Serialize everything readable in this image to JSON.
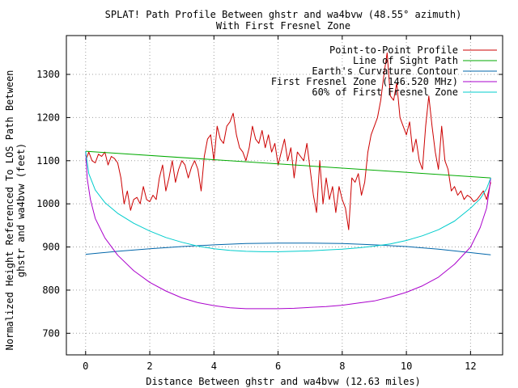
{
  "chart_data": {
    "type": "line",
    "title_line1": "SPLAT! Path Profile Between ghstr and wa4bvw (48.55° azimuth)",
    "title_line2": "With First Fresnel Zone",
    "xlabel": "Distance Between ghstr and wa4bvw (12.63 miles)",
    "ylabel_line1": "Normalized Height Referenced To LOS Path Between",
    "ylabel_line2": "ghstr and wa4bvw (feet)",
    "xlim": [
      -0.6,
      13.0
    ],
    "ylim": [
      650,
      1390
    ],
    "x_ticks": [
      0,
      2,
      4,
      6,
      8,
      10,
      12
    ],
    "y_ticks": [
      700,
      800,
      900,
      1000,
      1100,
      1200,
      1300
    ],
    "grid": true,
    "legend_position": "top-right",
    "series": [
      {
        "name": "Point-to-Point Profile",
        "color": "#cc0000",
        "x": [
          0.0,
          0.1,
          0.2,
          0.3,
          0.4,
          0.5,
          0.6,
          0.7,
          0.8,
          0.9,
          1.0,
          1.1,
          1.2,
          1.3,
          1.4,
          1.5,
          1.6,
          1.7,
          1.8,
          1.9,
          2.0,
          2.1,
          2.2,
          2.3,
          2.4,
          2.5,
          2.6,
          2.7,
          2.8,
          2.9,
          3.0,
          3.1,
          3.2,
          3.3,
          3.4,
          3.5,
          3.6,
          3.7,
          3.8,
          3.9,
          4.0,
          4.1,
          4.2,
          4.3,
          4.4,
          4.5,
          4.6,
          4.7,
          4.8,
          4.9,
          5.0,
          5.1,
          5.2,
          5.3,
          5.4,
          5.5,
          5.6,
          5.7,
          5.8,
          5.9,
          6.0,
          6.1,
          6.2,
          6.3,
          6.4,
          6.5,
          6.6,
          6.7,
          6.8,
          6.9,
          7.0,
          7.1,
          7.2,
          7.3,
          7.4,
          7.5,
          7.6,
          7.7,
          7.8,
          7.9,
          8.0,
          8.1,
          8.2,
          8.3,
          8.4,
          8.5,
          8.6,
          8.7,
          8.8,
          8.9,
          9.0,
          9.1,
          9.2,
          9.3,
          9.4,
          9.5,
          9.6,
          9.7,
          9.8,
          9.9,
          10.0,
          10.1,
          10.2,
          10.3,
          10.4,
          10.5,
          10.6,
          10.7,
          10.8,
          10.9,
          11.0,
          11.1,
          11.2,
          11.3,
          11.4,
          11.5,
          11.6,
          11.7,
          11.8,
          11.9,
          12.0,
          12.1,
          12.2,
          12.3,
          12.4,
          12.5,
          12.63
        ],
        "y": [
          1100,
          1120,
          1100,
          1095,
          1115,
          1110,
          1120,
          1090,
          1110,
          1105,
          1095,
          1060,
          1000,
          1030,
          985,
          1010,
          1015,
          1000,
          1040,
          1010,
          1005,
          1020,
          1010,
          1060,
          1090,
          1030,
          1060,
          1100,
          1050,
          1080,
          1100,
          1090,
          1060,
          1085,
          1100,
          1080,
          1030,
          1110,
          1150,
          1160,
          1100,
          1180,
          1150,
          1140,
          1180,
          1190,
          1210,
          1160,
          1130,
          1120,
          1100,
          1130,
          1180,
          1150,
          1140,
          1170,
          1130,
          1160,
          1120,
          1140,
          1090,
          1120,
          1150,
          1100,
          1130,
          1060,
          1120,
          1110,
          1100,
          1140,
          1080,
          1020,
          980,
          1100,
          1000,
          1060,
          1010,
          1040,
          980,
          1040,
          1010,
          990,
          940,
          1060,
          1050,
          1070,
          1020,
          1050,
          1120,
          1160,
          1180,
          1200,
          1240,
          1300,
          1350,
          1250,
          1240,
          1280,
          1200,
          1180,
          1160,
          1190,
          1120,
          1150,
          1100,
          1080,
          1180,
          1250,
          1180,
          1120,
          1080,
          1180,
          1100,
          1080,
          1030,
          1040,
          1020,
          1030,
          1010,
          1020,
          1015,
          1005,
          1010,
          1020,
          1030,
          1010,
          1050
        ]
      },
      {
        "name": "Line of Sight Path",
        "color": "#00aa00",
        "x": [
          0.0,
          12.63
        ],
        "y": [
          1122,
          1060
        ]
      },
      {
        "name": "Earth's Curvature Contour",
        "color": "#0066aa",
        "x": [
          0.0,
          1.0,
          2.0,
          3.0,
          4.0,
          5.0,
          6.0,
          6.32,
          7.0,
          8.0,
          9.0,
          10.0,
          11.0,
          12.0,
          12.63
        ],
        "y": [
          883,
          890,
          896,
          901,
          905,
          908,
          909,
          909,
          909,
          908,
          905,
          901,
          895,
          887,
          882
        ]
      },
      {
        "name": "First Fresnel Zone (146.520 MHz)",
        "color": "#aa00cc",
        "x": [
          0.0,
          0.05,
          0.15,
          0.3,
          0.6,
          1.0,
          1.5,
          2.0,
          2.5,
          3.0,
          3.5,
          4.0,
          4.5,
          5.0,
          5.5,
          6.0,
          6.5,
          7.0,
          7.5,
          8.0,
          8.5,
          9.0,
          9.5,
          10.0,
          10.5,
          11.0,
          11.5,
          12.0,
          12.3,
          12.5,
          12.6,
          12.63
        ],
        "y": [
          1122,
          1058,
          1010,
          966,
          921,
          881,
          845,
          818,
          798,
          782,
          771,
          764,
          759,
          757,
          757,
          757,
          758,
          760,
          762,
          765,
          770,
          775,
          784,
          795,
          810,
          830,
          860,
          900,
          945,
          990,
          1040,
          1060
        ]
      },
      {
        "name": "60% of First Fresnel Zone",
        "color": "#00cccc",
        "x": [
          0.0,
          0.1,
          0.3,
          0.6,
          1.0,
          1.5,
          2.0,
          2.5,
          3.0,
          3.5,
          4.0,
          4.5,
          5.0,
          5.5,
          6.0,
          6.5,
          7.0,
          7.5,
          8.0,
          8.5,
          9.0,
          9.5,
          10.0,
          10.5,
          11.0,
          11.5,
          12.0,
          12.3,
          12.5,
          12.63
        ],
        "y": [
          1122,
          1070,
          1032,
          1003,
          978,
          955,
          937,
          922,
          911,
          902,
          896,
          892,
          890,
          889,
          889,
          890,
          891,
          893,
          895,
          898,
          902,
          907,
          915,
          926,
          940,
          960,
          990,
          1012,
          1035,
          1060
        ]
      }
    ]
  }
}
